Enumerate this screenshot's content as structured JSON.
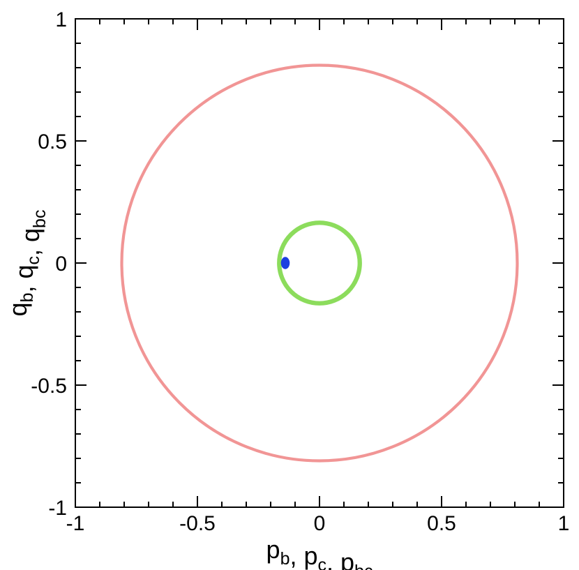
{
  "chart_data": {
    "type": "scatter",
    "title": "",
    "xlabel": {
      "parts": [
        {
          "t": "p",
          "s": false
        },
        {
          "t": "b",
          "s": true
        },
        {
          "t": ", p",
          "s": false
        },
        {
          "t": "c",
          "s": true
        },
        {
          "t": ", p",
          "s": false
        },
        {
          "t": "bc",
          "s": true
        }
      ]
    },
    "ylabel": {
      "parts": [
        {
          "t": "q",
          "s": false
        },
        {
          "t": "b",
          "s": true
        },
        {
          "t": ", q",
          "s": false
        },
        {
          "t": "c",
          "s": true
        },
        {
          "t": ", q",
          "s": false
        },
        {
          "t": "bc",
          "s": true
        }
      ]
    },
    "xlim": [
      -1,
      1
    ],
    "ylim": [
      -1,
      1
    ],
    "xticks": [
      {
        "value": -1,
        "label": "-1"
      },
      {
        "value": -0.5,
        "label": "-0.5"
      },
      {
        "value": 0,
        "label": "0"
      },
      {
        "value": 0.5,
        "label": "0.5"
      },
      {
        "value": 1,
        "label": "1"
      }
    ],
    "yticks": [
      {
        "value": -1,
        "label": "-1"
      },
      {
        "value": -0.5,
        "label": "-0.5"
      },
      {
        "value": 0,
        "label": "0"
      },
      {
        "value": 0.5,
        "label": "0.5"
      },
      {
        "value": 1,
        "label": "1"
      }
    ],
    "minor_tick_step": 0.1,
    "grid": false,
    "series": [
      {
        "shape": "ring",
        "color": "#f08a8a",
        "center": [
          0,
          0
        ],
        "radius": 0.81,
        "thickness": 0.012
      },
      {
        "shape": "ring",
        "color": "#7fd84a",
        "center": [
          0,
          0
        ],
        "radius": 0.165,
        "thickness": 0.018
      },
      {
        "shape": "blob",
        "color": "#1b3fe0",
        "center": [
          -0.14,
          0
        ],
        "rx": 0.018,
        "ry": 0.025
      }
    ]
  }
}
